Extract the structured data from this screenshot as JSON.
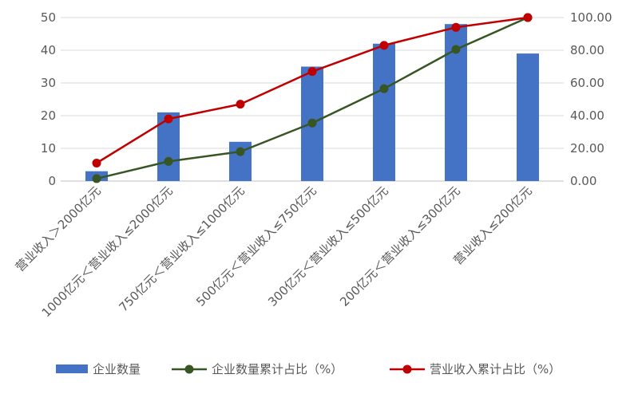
{
  "chart_data": {
    "type": "bar",
    "categories": [
      "营业收入＞2000亿元",
      "1000亿元＜营业收入≤2000亿元",
      "750亿元＜营业收入≤1000亿元",
      "500亿元＜营业收入≤750亿元",
      "300亿元＜营业收入≤500亿元",
      "200亿元＜营业收入≤300亿元",
      "营业收入≤200亿元"
    ],
    "series": [
      {
        "name": "企业数量",
        "type": "bar",
        "axis": "left",
        "color": "#4472C4",
        "values": [
          3,
          21,
          12,
          35,
          42,
          48,
          39
        ]
      },
      {
        "name": "企业数量累计占比（%）",
        "type": "line",
        "axis": "right",
        "color": "#375623",
        "values": [
          1.5,
          12.0,
          18.0,
          35.5,
          56.5,
          80.5,
          100.0
        ]
      },
      {
        "name": "营业收入累计占比（%）",
        "type": "line",
        "axis": "right",
        "color": "#C00000",
        "values": [
          11.0,
          38.0,
          47.0,
          67.0,
          83.0,
          94.0,
          100.0
        ]
      }
    ],
    "left_axis": {
      "ylim": [
        0,
        50
      ],
      "ticks": [
        "0",
        "10",
        "20",
        "30",
        "40",
        "50"
      ]
    },
    "right_axis": {
      "ylim": [
        0,
        100
      ],
      "ticks": [
        "0.00",
        "20.00",
        "40.00",
        "60.00",
        "80.00",
        "100.00"
      ]
    },
    "grid": true,
    "legend_position": "bottom"
  }
}
